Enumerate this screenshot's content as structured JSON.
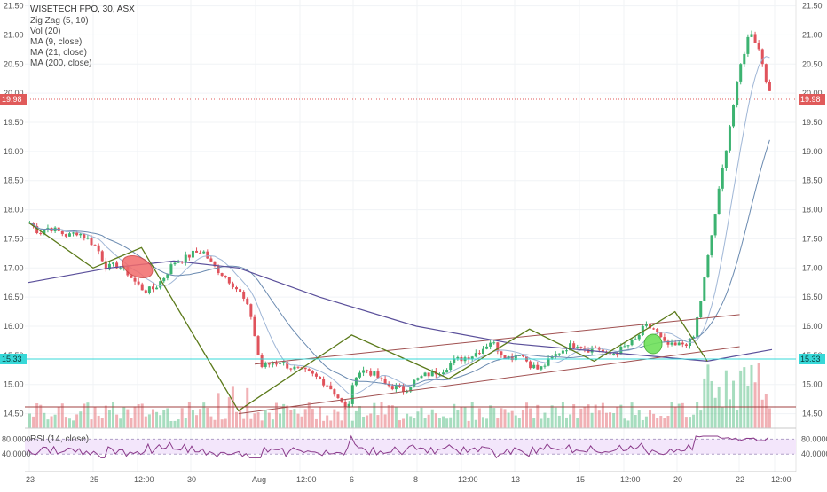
{
  "legend": {
    "title": "WISETECH FPO, 30, ASX",
    "lines": [
      "Zig Zag (5, 10)",
      "Vol (20)",
      "MA (9, close)",
      "MA (21, close)",
      "MA (200, close)"
    ]
  },
  "rsi_label": "RSI (14, close)",
  "price_axis": {
    "ticks": [
      "21.50",
      "21.00",
      "20.50",
      "20.00",
      "19.50",
      "19.00",
      "18.50",
      "18.00",
      "17.50",
      "17.00",
      "16.50",
      "16.00",
      "15.50",
      "15.00",
      "14.50"
    ],
    "min": 14.25,
    "max": 21.6
  },
  "rsi_axis": {
    "ticks": [
      "80.0000",
      "40.0000"
    ]
  },
  "time_axis": {
    "labels": [
      "23",
      "25",
      "12:00",
      "30",
      "Aug",
      "12:00",
      "6",
      "8",
      "12:00",
      "13",
      "15",
      "12:00",
      "20",
      "22",
      "12:00"
    ]
  },
  "markers": {
    "last_price": "19.98",
    "level_price": "15.33"
  },
  "colors": {
    "up": "#3cb371",
    "down": "#e0535c",
    "zigzag": "#5b7a1a",
    "channel": "#a05050",
    "ma_fast": "#9fb6d6",
    "ma_mid": "#6a8ab0",
    "ma_long": "#5a4f9a",
    "rsi_line": "#8a3a8a",
    "last_price_line": "#e05a5a",
    "level_line": "#37d8d8"
  },
  "chart_data": {
    "type": "candlestick",
    "ohlc_path": [
      17.78,
      17.6,
      17.7,
      17.62,
      17.55,
      17.62,
      17.5,
      17.35,
      17.0,
      17.05,
      16.95,
      16.75,
      16.6,
      16.65,
      16.85,
      17.1,
      17.15,
      17.25,
      17.3,
      17.05,
      16.9,
      16.75,
      16.55,
      16.2,
      15.3,
      15.35,
      15.4,
      15.3,
      15.25,
      15.2,
      15.1,
      15.0,
      14.8,
      14.55,
      15.2,
      15.25,
      15.15,
      15.0,
      14.95,
      14.9,
      15.05,
      15.15,
      15.2,
      15.25,
      15.4,
      15.45,
      15.5,
      15.6,
      15.75,
      15.55,
      15.45,
      15.55,
      15.35,
      15.25,
      15.4,
      15.55,
      15.65,
      15.7,
      15.6,
      15.65,
      15.5,
      15.55,
      15.65,
      15.75,
      16.0,
      15.95,
      15.7,
      15.65,
      15.7,
      15.75,
      16.6,
      17.6,
      18.6,
      19.6,
      20.5,
      21.1,
      20.7,
      19.98
    ],
    "zigzag": [
      [
        0,
        17.78
      ],
      [
        4,
        17.0
      ],
      [
        7,
        17.35
      ],
      [
        13,
        14.55
      ],
      [
        20,
        15.85
      ],
      [
        26,
        15.1
      ],
      [
        31,
        15.95
      ],
      [
        35,
        15.4
      ],
      [
        40,
        16.25
      ],
      [
        42,
        15.4
      ]
    ],
    "channel_upper": [
      [
        14,
        15.35
      ],
      [
        44,
        16.2
      ]
    ],
    "channel_lower": [
      [
        13,
        14.5
      ],
      [
        44,
        15.65
      ]
    ],
    "ma200": [
      [
        0,
        16.75
      ],
      [
        5,
        17.0
      ],
      [
        9,
        17.12
      ],
      [
        13,
        17.0
      ],
      [
        18,
        16.5
      ],
      [
        24,
        16.0
      ],
      [
        30,
        15.7
      ],
      [
        36,
        15.55
      ],
      [
        42,
        15.4
      ],
      [
        46,
        15.6
      ]
    ],
    "volume_scale_note": "",
    "rsi_levels": [
      80,
      40
    ]
  }
}
